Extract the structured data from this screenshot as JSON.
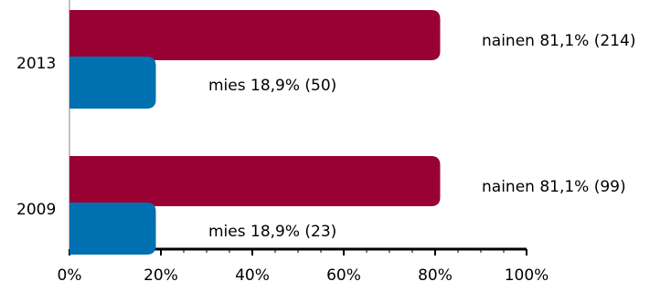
{
  "chart_data": {
    "type": "bar",
    "orientation": "horizontal",
    "categories": [
      "2013",
      "2009"
    ],
    "series": [
      {
        "key": "nainen",
        "color": "#990033",
        "values": [
          81.1,
          81.1
        ],
        "labels": [
          "nainen 81,1% (214)",
          "nainen 81,1% (99)"
        ]
      },
      {
        "key": "mies",
        "color": "#0070b0",
        "values": [
          18.9,
          18.9
        ],
        "labels": [
          "mies 18,9% (50)",
          "mies 18,9% (23)"
        ]
      }
    ],
    "xlim": [
      0,
      100
    ],
    "x_ticks": [
      0,
      20,
      40,
      60,
      80,
      100
    ],
    "x_tick_labels": [
      "0%",
      "20%",
      "40%",
      "60%",
      "80%",
      "100%"
    ],
    "grid": false,
    "legend": "none"
  }
}
